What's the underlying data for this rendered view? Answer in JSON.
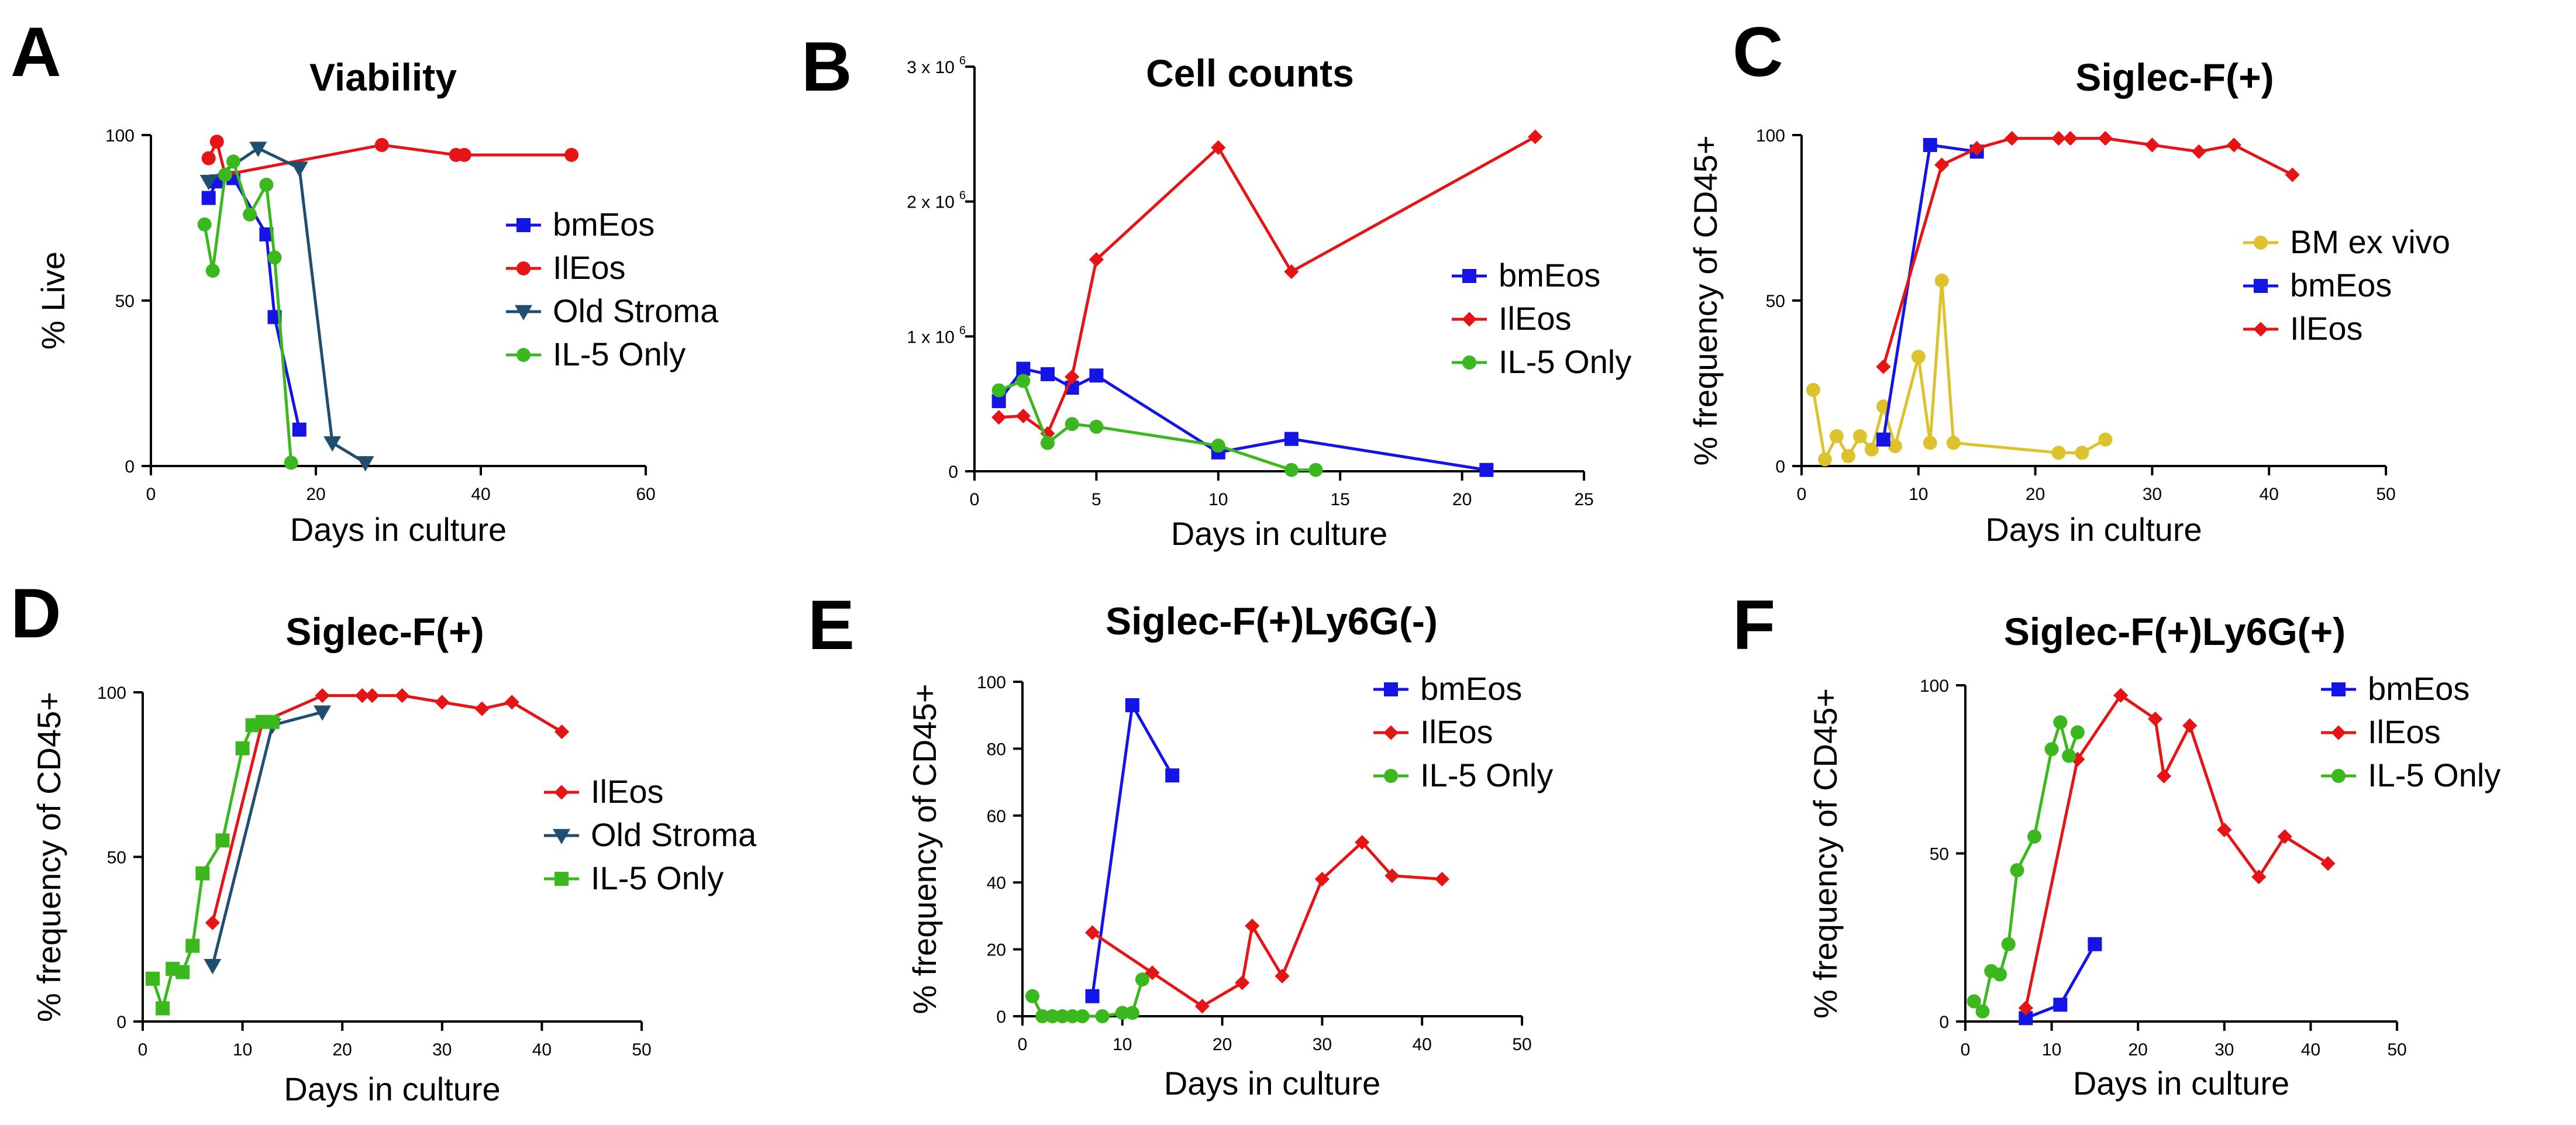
{
  "figure": {
    "palette": {
      "bmEos": "#1414e6",
      "IlEos": "#e61414",
      "Old Stroma": "#1f4e70",
      "IL-5 Only": "#3ab81e",
      "BM ex vivo": "#dcc32e"
    }
  },
  "chart_data": [
    {
      "id": "A",
      "letter": "A",
      "type": "line",
      "title": "Viability",
      "xlabel": "Days in culture",
      "ylabel": "% Live",
      "xlim": [
        0,
        60
      ],
      "ylim": [
        0,
        100
      ],
      "xticks": [
        0,
        20,
        40,
        60
      ],
      "yticks": [
        0,
        50,
        100
      ],
      "ytick_labels": [
        "0",
        "50",
        "100"
      ],
      "series": [
        {
          "name": "bmEos",
          "marker": "square",
          "x": [
            7,
            8,
            10,
            14,
            15,
            18
          ],
          "y": [
            81,
            86,
            87,
            70,
            45,
            11
          ]
        },
        {
          "name": "IlEos",
          "marker": "circle",
          "x": [
            7,
            8,
            9,
            28,
            37,
            38,
            51
          ],
          "y": [
            93,
            98,
            88,
            97,
            94,
            94,
            94
          ]
        },
        {
          "name": "Old Stroma",
          "marker": "triangle-down",
          "x": [
            7,
            13,
            18,
            22,
            26
          ],
          "y": [
            86,
            96,
            90,
            7,
            1
          ]
        },
        {
          "name": "IL-5 Only",
          "marker": "circle",
          "x": [
            6.5,
            7.5,
            9,
            10,
            12,
            14,
            15,
            17
          ],
          "y": [
            73,
            59,
            88,
            92,
            76,
            85,
            63,
            1
          ]
        }
      ],
      "legend": [
        "bmEos",
        "IlEos",
        "Old Stroma",
        "IL-5 Only"
      ]
    },
    {
      "id": "B",
      "letter": "B",
      "type": "line",
      "title": "Cell counts",
      "xlabel": "Days in culture",
      "ylabel": "",
      "xlim": [
        0,
        25
      ],
      "ylim": [
        0,
        3000000
      ],
      "xticks": [
        0,
        5,
        10,
        15,
        20,
        25
      ],
      "yticks": [
        0,
        1000000,
        2000000,
        3000000
      ],
      "ytick_labels": [
        "0",
        "1 x 10",
        "2 x 10",
        "3 x 10"
      ],
      "ytick_exponents": [
        "",
        "6",
        "6",
        "6"
      ],
      "series": [
        {
          "name": "bmEos",
          "marker": "square",
          "x": [
            1,
            2,
            3,
            4,
            5,
            10,
            13,
            21
          ],
          "y": [
            520000,
            760000,
            720000,
            620000,
            710000,
            140000,
            240000,
            10000
          ]
        },
        {
          "name": "IlEos",
          "marker": "diamond",
          "x": [
            1,
            2,
            3,
            4,
            5,
            10,
            13,
            23
          ],
          "y": [
            400000,
            410000,
            280000,
            700000,
            1570000,
            2400000,
            1480000,
            2480000
          ]
        },
        {
          "name": "IL-5 Only",
          "marker": "circle",
          "x": [
            1,
            2,
            3,
            4,
            5,
            10,
            13,
            14
          ],
          "y": [
            600000,
            670000,
            210000,
            350000,
            330000,
            190000,
            10000,
            10000
          ]
        }
      ],
      "legend": [
        "bmEos",
        "IlEos",
        "IL-5 Only"
      ]
    },
    {
      "id": "C",
      "letter": "C",
      "type": "line",
      "title": "Siglec-F(+)",
      "xlabel": "Days in culture",
      "ylabel": "% frequency of CD45+",
      "xlim": [
        0,
        50
      ],
      "ylim": [
        0,
        100
      ],
      "xticks": [
        0,
        10,
        20,
        30,
        40,
        50
      ],
      "yticks": [
        0,
        50,
        100
      ],
      "ytick_labels": [
        "0",
        "50",
        "100"
      ],
      "series": [
        {
          "name": "BM ex vivo",
          "marker": "circle",
          "x": [
            1,
            2,
            3,
            4,
            5,
            6,
            7,
            8,
            10,
            11,
            12,
            13,
            22,
            24,
            26
          ],
          "y": [
            23,
            2,
            9,
            3,
            9,
            5,
            18,
            6,
            33,
            7,
            56,
            7,
            4,
            4,
            8
          ]
        },
        {
          "name": "bmEos",
          "marker": "square",
          "x": [
            7,
            11,
            15
          ],
          "y": [
            8,
            97,
            95
          ]
        },
        {
          "name": "IlEos",
          "marker": "diamond",
          "x": [
            7,
            12,
            15,
            18,
            22,
            23,
            26,
            30,
            34,
            37,
            42
          ],
          "y": [
            30,
            91,
            96,
            99,
            99,
            99,
            99,
            97,
            95,
            97,
            88
          ]
        }
      ],
      "legend": [
        "BM ex vivo",
        "bmEos",
        "IlEos"
      ]
    },
    {
      "id": "D",
      "letter": "D",
      "type": "line",
      "title": "Siglec-F(+)",
      "xlabel": "Days in culture",
      "ylabel": "% frequency of CD45+",
      "xlim": [
        0,
        50
      ],
      "ylim": [
        0,
        100
      ],
      "xticks": [
        0,
        10,
        20,
        30,
        40,
        50
      ],
      "yticks": [
        0,
        50,
        100
      ],
      "ytick_labels": [
        "0",
        "50",
        "100"
      ],
      "series": [
        {
          "name": "IlEos",
          "marker": "diamond",
          "x": [
            7,
            12,
            18,
            22,
            23,
            26,
            30,
            34,
            37,
            42
          ],
          "y": [
            30,
            91,
            99,
            99,
            99,
            99,
            97,
            95,
            97,
            88
          ]
        },
        {
          "name": "Old Stroma",
          "marker": "triangle-down",
          "x": [
            7,
            13,
            18
          ],
          "y": [
            17,
            90,
            94
          ]
        },
        {
          "name": "IL-5 Only",
          "marker": "square",
          "x": [
            1,
            2,
            3,
            4,
            5,
            6,
            8,
            10,
            11,
            12,
            13
          ],
          "y": [
            13,
            4,
            16,
            15,
            23,
            45,
            55,
            83,
            90,
            91,
            91
          ]
        }
      ],
      "legend": [
        "IlEos",
        "Old Stroma",
        "IL-5 Only"
      ]
    },
    {
      "id": "E",
      "letter": "E",
      "type": "line",
      "title": "Siglec-F(+)Ly6G(-)",
      "xlabel": "Days in culture",
      "ylabel": "% frequency of CD45+",
      "xlim": [
        0,
        50
      ],
      "ylim": [
        0,
        100
      ],
      "xticks": [
        0,
        10,
        20,
        30,
        40,
        50
      ],
      "yticks": [
        0,
        20,
        40,
        60,
        80,
        100
      ],
      "ytick_labels": [
        "0",
        "20",
        "40",
        "60",
        "80",
        "100"
      ],
      "series": [
        {
          "name": "bmEos",
          "marker": "square",
          "x": [
            7,
            11,
            15
          ],
          "y": [
            6,
            93,
            72
          ]
        },
        {
          "name": "IlEos",
          "marker": "diamond",
          "x": [
            7,
            13,
            18,
            22,
            23,
            26,
            30,
            34,
            37,
            42
          ],
          "y": [
            25,
            13,
            3,
            10,
            27,
            12,
            41,
            52,
            42,
            41
          ]
        },
        {
          "name": "IL-5 Only",
          "marker": "circle",
          "x": [
            1,
            2,
            3,
            4,
            5,
            6,
            8,
            10,
            11,
            12
          ],
          "y": [
            6,
            0,
            0,
            0,
            0,
            0,
            0,
            1,
            1,
            11
          ]
        }
      ],
      "legend": [
        "bmEos",
        "IlEos",
        "IL-5 Only"
      ]
    },
    {
      "id": "F",
      "letter": "F",
      "type": "line",
      "title": "Siglec-F(+)Ly6G(+)",
      "xlabel": "Days in culture",
      "ylabel": "% frequency of CD45+",
      "xlim": [
        0,
        50
      ],
      "ylim": [
        0,
        100
      ],
      "xticks": [
        0,
        10,
        20,
        30,
        40,
        50
      ],
      "yticks": [
        0,
        50,
        100
      ],
      "ytick_labels": [
        "0",
        "50",
        "100"
      ],
      "series": [
        {
          "name": "bmEos",
          "marker": "square",
          "x": [
            7,
            11,
            15
          ],
          "y": [
            1,
            5,
            23
          ]
        },
        {
          "name": "IlEos",
          "marker": "diamond",
          "x": [
            7,
            13,
            18,
            22,
            23,
            26,
            30,
            34,
            37,
            42
          ],
          "y": [
            4,
            78,
            97,
            90,
            73,
            88,
            57,
            43,
            55,
            47
          ]
        },
        {
          "name": "IL-5 Only",
          "marker": "circle",
          "x": [
            1,
            2,
            3,
            4,
            5,
            6,
            8,
            10,
            11,
            12,
            13
          ],
          "y": [
            6,
            3,
            15,
            14,
            23,
            45,
            55,
            81,
            89,
            79,
            86
          ]
        }
      ],
      "legend": [
        "bmEos",
        "IlEos",
        "IL-5 Only"
      ]
    }
  ]
}
